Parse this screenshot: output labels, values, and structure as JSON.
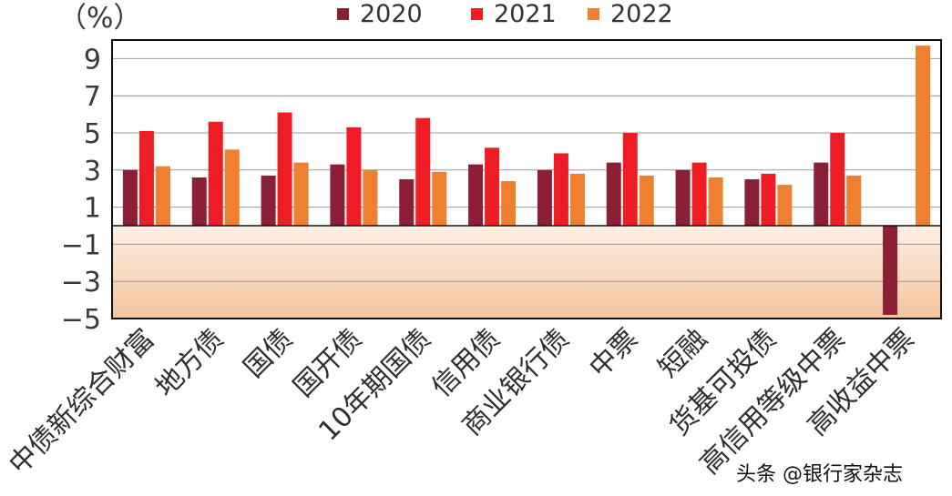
{
  "unit_label": "（%）",
  "watermark": "头条 @银行家杂志",
  "colors": {
    "2020": "#8b1f35",
    "2021": "#ee1c24",
    "2022": "#ef7f31"
  },
  "chart_data": {
    "type": "bar",
    "title": "",
    "xlabel": "",
    "ylabel": "（%）",
    "ylim": [
      -5,
      10
    ],
    "yticks": [
      9,
      7,
      5,
      3,
      1,
      -1,
      -3,
      -5
    ],
    "grid": true,
    "legend_position": "top",
    "categories": [
      "中债新综合财富",
      "地方债",
      "国债",
      "国开债",
      "10年期国债",
      "信用债",
      "商业银行债",
      "中票",
      "短融",
      "货基可投债",
      "高信用等级中票",
      "高收益中票"
    ],
    "series": [
      {
        "name": "2020",
        "color": "#8b1f35",
        "values": [
          3.0,
          2.6,
          2.7,
          3.3,
          2.5,
          3.3,
          3.0,
          3.4,
          3.0,
          2.5,
          3.4,
          -4.8
        ]
      },
      {
        "name": "2021",
        "color": "#ee1c24",
        "values": [
          5.1,
          5.6,
          6.1,
          5.3,
          5.8,
          4.2,
          3.9,
          5.0,
          3.4,
          2.8,
          5.0,
          null
        ]
      },
      {
        "name": "2022",
        "color": "#ef7f31",
        "values": [
          3.2,
          4.1,
          3.4,
          3.0,
          2.9,
          2.4,
          2.8,
          2.7,
          2.6,
          2.2,
          2.7,
          9.7
        ]
      }
    ]
  }
}
